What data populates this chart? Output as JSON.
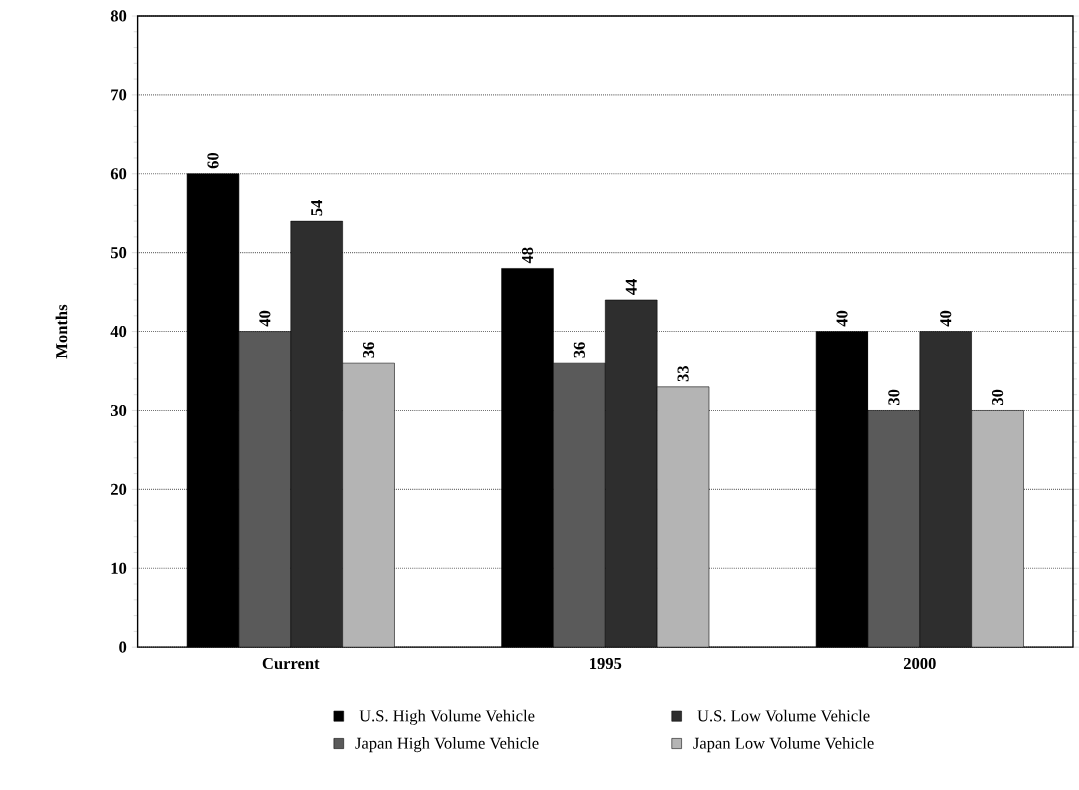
{
  "chart_data": {
    "type": "bar",
    "ylabel": "Months",
    "categories": [
      "Current",
      "1995",
      "2000"
    ],
    "series": [
      {
        "name": "U.S. High Volume Vehicle",
        "color": "#000000",
        "values": [
          60,
          48,
          40
        ]
      },
      {
        "name": "Japan High Volume Vehicle",
        "color": "#5a5a5a",
        "values": [
          40,
          36,
          30
        ]
      },
      {
        "name": "U.S. Low Volume Vehicle",
        "color": "#2e2e2e",
        "values": [
          54,
          44,
          40
        ]
      },
      {
        "name": "Japan Low Volume Vehicle",
        "color": "#b4b4b4",
        "values": [
          36,
          33,
          30
        ]
      }
    ],
    "ylim": [
      0,
      80
    ],
    "yticks": [
      0,
      10,
      20,
      30,
      40,
      50,
      60,
      70,
      80
    ],
    "grid": "y",
    "legend": "bottom",
    "data_labels": true
  }
}
